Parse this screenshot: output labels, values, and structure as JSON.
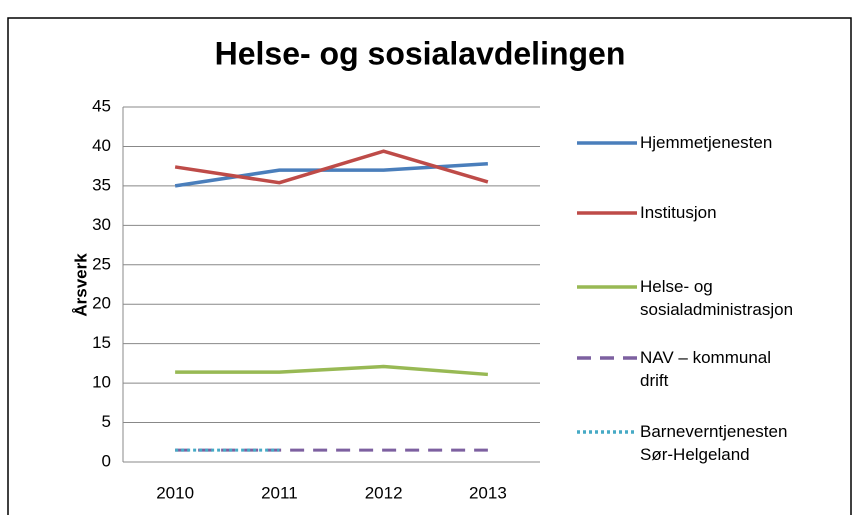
{
  "chart_data": {
    "type": "line",
    "title": "Helse- og sosialavdelingen",
    "y_label": "Årsverk",
    "categories": [
      "2010",
      "2011",
      "2012",
      "2013"
    ],
    "series": [
      {
        "name": "Hjemmetjenesten",
        "color": "#4a7ebb",
        "style": "solid",
        "values": [
          35,
          37,
          37,
          37.8
        ]
      },
      {
        "name": "Institusjon",
        "color": "#be4b48",
        "style": "solid",
        "values": [
          37.4,
          35.4,
          39.4,
          35.5
        ]
      },
      {
        "name": "Helse- og\nsosialadministrasjon",
        "color": "#98b954",
        "style": "solid",
        "values": [
          11.4,
          11.4,
          12.1,
          11.1
        ]
      },
      {
        "name": "NAV – kommunal\ndrift",
        "color": "#7d60a0",
        "style": "dashed",
        "values": [
          1.5,
          1.5,
          1.5,
          1.5
        ]
      },
      {
        "name": "Barneverntjenesten\nSør-Helgeland",
        "color": "#46aac5",
        "style": "dotted",
        "values": [
          1.5,
          1.5,
          null,
          null
        ]
      }
    ],
    "ylim": [
      0,
      45
    ],
    "yticks": [
      0,
      5,
      10,
      15,
      20,
      25,
      30,
      35,
      40,
      45
    ],
    "grid": true,
    "legend": "right"
  }
}
